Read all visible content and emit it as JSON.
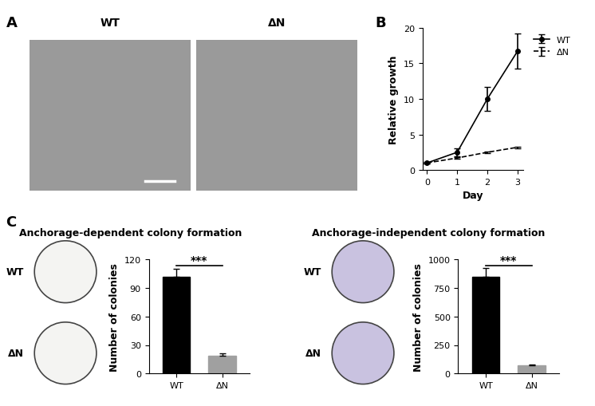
{
  "figure": {
    "panel_labels": [
      "A",
      "B",
      "C"
    ],
    "images": {
      "labels": [
        "WT",
        "ΔN"
      ]
    }
  },
  "chart_data": [
    {
      "type": "line",
      "x": [
        0,
        1,
        2,
        3
      ],
      "xlabel": "Day",
      "ylabel": "Relative growth",
      "xlim": [
        -0.15,
        3.2
      ],
      "xticks": [
        0,
        1,
        2,
        3
      ],
      "ylim": [
        0,
        20
      ],
      "yticks": [
        0,
        5,
        10,
        15,
        20
      ],
      "legend": "upper left",
      "series": [
        {
          "name": "WT",
          "color": "#000000",
          "values": [
            1,
            2.5,
            10,
            16.7
          ],
          "errors": [
            0.1,
            0.6,
            1.7,
            2.5
          ],
          "marker": "o",
          "line_style": "solid"
        },
        {
          "name": "ΔN",
          "color": "#000000",
          "values": [
            1,
            1.7,
            2.5,
            3.2
          ],
          "errors": [
            0.05,
            0.1,
            0.1,
            0.1
          ],
          "marker": "none",
          "line_style": "dashed"
        }
      ]
    },
    {
      "type": "bar",
      "title": "Anchorage-dependent colony formation",
      "categories": [
        "WT",
        "ΔN"
      ],
      "values": [
        102,
        19
      ],
      "errors": [
        8,
        2
      ],
      "colors": [
        "#000000",
        "#a0a0a0"
      ],
      "ylabel": "Number of colonies",
      "ylim": [
        0,
        120
      ],
      "yticks": [
        0,
        30,
        60,
        90,
        120
      ],
      "significance": "***"
    },
    {
      "type": "bar",
      "title": "Anchorage-independent colony formation",
      "categories": [
        "WT",
        "ΔN"
      ],
      "values": [
        850,
        70
      ],
      "errors": [
        75,
        10
      ],
      "colors": [
        "#000000",
        "#a0a0a0"
      ],
      "ylabel": "Number of colonies",
      "ylim": [
        0,
        1000
      ],
      "yticks": [
        0,
        250,
        500,
        750,
        1000
      ],
      "significance": "***"
    }
  ]
}
